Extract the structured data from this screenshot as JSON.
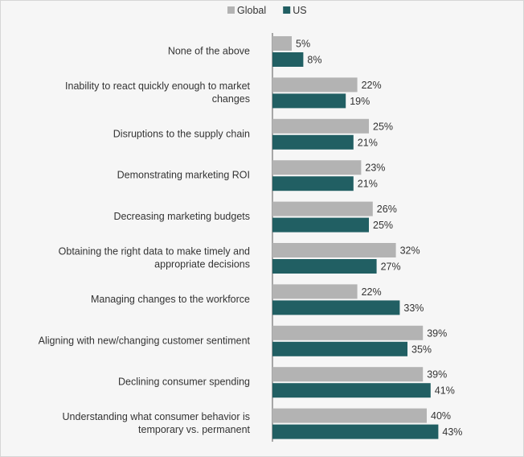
{
  "chart_data": {
    "type": "bar",
    "orientation": "horizontal",
    "legend": [
      "Global",
      "US"
    ],
    "legend_position": "top",
    "categories": [
      [
        "None of the above"
      ],
      [
        "Inability to react quickly enough to market",
        "changes"
      ],
      [
        "Disruptions to the supply chain"
      ],
      [
        "Demonstrating marketing ROI"
      ],
      [
        "Decreasing marketing budgets"
      ],
      [
        "Obtaining the right data to make timely and",
        "appropriate decisions"
      ],
      [
        "Managing changes to the workforce"
      ],
      [
        "Aligning with new/changing customer sentiment"
      ],
      [
        "Declining consumer spending"
      ],
      [
        "Understanding what consumer behavior is",
        "temporary vs. permanent"
      ]
    ],
    "series": [
      {
        "name": "Global",
        "color": "#b3b3b3",
        "values": [
          5,
          22,
          25,
          23,
          26,
          32,
          22,
          39,
          39,
          40
        ]
      },
      {
        "name": "US",
        "color": "#215f63",
        "values": [
          8,
          19,
          21,
          21,
          25,
          27,
          33,
          35,
          41,
          43
        ]
      }
    ],
    "value_suffix": "%",
    "grid": false
  }
}
